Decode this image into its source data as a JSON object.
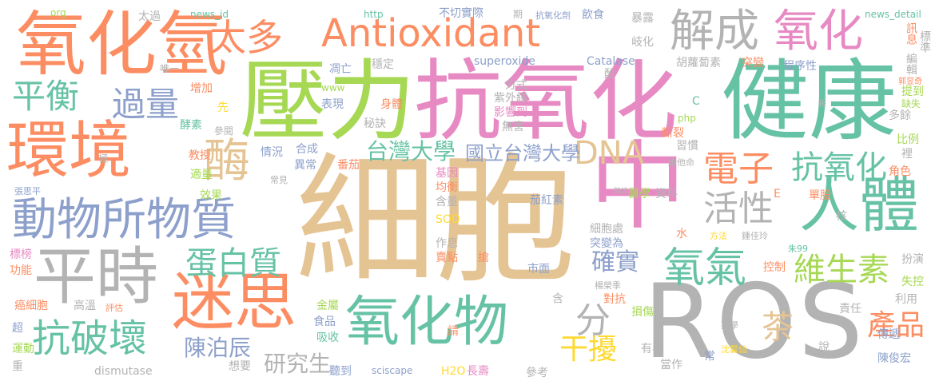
{
  "colors": {
    "background": "#ffffff",
    "palette": [
      "#e5c494",
      "#fc8d62",
      "#66c2a5",
      "#8da0cb",
      "#e78ac3",
      "#a6d854",
      "#ffd92f",
      "#b3b3b3"
    ]
  },
  "words": [
    {
      "text": "細胞"
    },
    {
      "text": "ROS"
    },
    {
      "text": "中"
    },
    {
      "text": "壓力"
    },
    {
      "text": "抗氧化"
    },
    {
      "text": "健康"
    },
    {
      "text": "氧化氫"
    },
    {
      "text": "環境"
    },
    {
      "text": "人體"
    },
    {
      "text": "平時"
    },
    {
      "text": "迷思"
    },
    {
      "text": "氧化物"
    },
    {
      "text": "動物所物質"
    },
    {
      "text": "Antioxidant"
    },
    {
      "text": "太多"
    },
    {
      "text": "解成"
    },
    {
      "text": "氧化"
    },
    {
      "text": "平衡"
    },
    {
      "text": "過量"
    },
    {
      "text": "電子"
    },
    {
      "text": "抗破壞"
    },
    {
      "text": "酶"
    },
    {
      "text": "DNA"
    },
    {
      "text": "活性"
    },
    {
      "text": "氧氣"
    },
    {
      "text": "蛋白質"
    },
    {
      "text": "抗氧化"
    },
    {
      "text": "維生素"
    },
    {
      "text": "確實"
    },
    {
      "text": "產品"
    },
    {
      "text": "干擾"
    },
    {
      "text": "分"
    },
    {
      "text": "茶"
    },
    {
      "text": "陳泊辰"
    },
    {
      "text": "研究生"
    },
    {
      "text": "台灣大學"
    },
    {
      "text": "國立台灣大學"
    },
    {
      "text": "superoxide"
    },
    {
      "text": "Catalase"
    },
    {
      "text": "dismutase"
    },
    {
      "text": "sciscape"
    },
    {
      "text": "org"
    },
    {
      "text": "太過"
    },
    {
      "text": "news_id"
    },
    {
      "text": "http"
    },
    {
      "text": "不切實際"
    },
    {
      "text": "期"
    },
    {
      "text": "抗氧化劑"
    },
    {
      "text": "飲食"
    },
    {
      "text": "暴露"
    },
    {
      "text": "news_detail"
    },
    {
      "text": "訊息"
    },
    {
      "text": "標準"
    },
    {
      "text": "編輯"
    },
    {
      "text": "提到"
    },
    {
      "text": "郭昱奇"
    },
    {
      "text": "缺失"
    },
    {
      "text": "多餘"
    },
    {
      "text": "比例"
    },
    {
      "text": "裡"
    },
    {
      "text": "角色"
    },
    {
      "text": "單股"
    },
    {
      "text": "核"
    },
    {
      "text": "扮演"
    },
    {
      "text": "失控"
    },
    {
      "text": "利用"
    },
    {
      "text": "傳遞"
    },
    {
      "text": "陳俊宏"
    },
    {
      "text": "說"
    },
    {
      "text": "常"
    },
    {
      "text": "當作"
    },
    {
      "text": "有毒"
    },
    {
      "text": "沈馨仙"
    },
    {
      "text": "藥學"
    },
    {
      "text": "責任"
    },
    {
      "text": "控制"
    },
    {
      "text": "朱99"
    },
    {
      "text": "鍾佳玲"
    },
    {
      "text": "方法"
    },
    {
      "text": "水"
    },
    {
      "text": "E"
    },
    {
      "text": "醫學"
    },
    {
      "text": "資料"
    },
    {
      "text": "雜誌"
    },
    {
      "text": "維他命"
    },
    {
      "text": "習慣"
    },
    {
      "text": "斷裂"
    },
    {
      "text": "報"
    },
    {
      "text": "C"
    },
    {
      "text": "php"
    },
    {
      "text": "酚"
    },
    {
      "text": "程序性"
    },
    {
      "text": "突變"
    },
    {
      "text": "胡蘿蔔素"
    },
    {
      "text": "岐化"
    },
    {
      "text": "唯一"
    },
    {
      "text": "凋亡"
    },
    {
      "text": "穩定"
    },
    {
      "text": "增加"
    },
    {
      "text": "先"
    },
    {
      "text": "酵素"
    },
    {
      "text": "參閱"
    },
    {
      "text": "教授"
    },
    {
      "text": "適量"
    },
    {
      "text": "效果"
    },
    {
      "text": "情況"
    },
    {
      "text": "合成"
    },
    {
      "text": "異常"
    },
    {
      "text": "常見"
    },
    {
      "text": "番茄"
    },
    {
      "text": "基因"
    },
    {
      "text": "均衡"
    },
    {
      "text": "含量"
    },
    {
      "text": "SOD"
    },
    {
      "text": "茄紅素"
    },
    {
      "text": "細胞處"
    },
    {
      "text": "突變為"
    },
    {
      "text": "作息"
    },
    {
      "text": "賣點"
    },
    {
      "text": "搶"
    },
    {
      "text": "市面"
    },
    {
      "text": "對抗"
    },
    {
      "text": "損傷"
    },
    {
      "text": "含"
    },
    {
      "text": "楊榮季"
    },
    {
      "text": "金屬"
    },
    {
      "text": "食品"
    },
    {
      "text": "吸收"
    },
    {
      "text": "請"
    },
    {
      "text": "高溫"
    },
    {
      "text": "評估"
    },
    {
      "text": "癌細胞"
    },
    {
      "text": "標榜"
    },
    {
      "text": "功能"
    },
    {
      "text": "超"
    },
    {
      "text": "運動"
    },
    {
      "text": "重"
    },
    {
      "text": "想要"
    },
    {
      "text": "聽到"
    },
    {
      "text": "H2O"
    },
    {
      "text": "長壽"
    },
    {
      "text": "參考"
    },
    {
      "text": "張思平"
    },
    {
      "text": "極"
    },
    {
      "text": "www"
    },
    {
      "text": "表現"
    },
    {
      "text": "身體"
    },
    {
      "text": "秘訣"
    },
    {
      "text": "方式"
    },
    {
      "text": "紫外線"
    },
    {
      "text": "影響到"
    },
    {
      "text": "無害"
    }
  ]
}
